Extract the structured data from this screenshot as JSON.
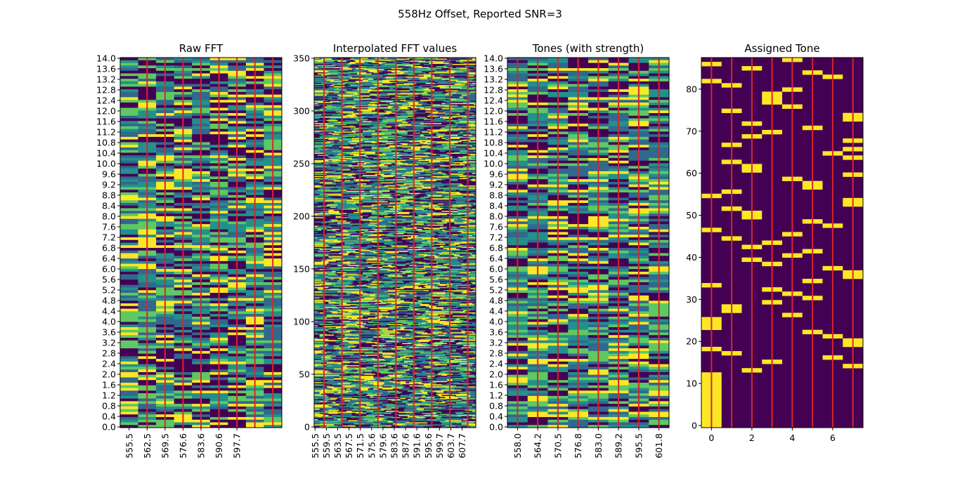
{
  "chart_data": {
    "title": "558Hz Offset, Reported SNR=3",
    "colormap": [
      "#440154",
      "#31688e",
      "#21918c",
      "#5ec962",
      "#fde725"
    ],
    "marker_color": "#d62728",
    "panels": [
      {
        "type": "heatmap",
        "title": "Raw FFT",
        "n_cols": 9,
        "n_rows": 140,
        "y_range": [
          0.0,
          14.0
        ],
        "yticks": [
          "0.0",
          "0.4",
          "0.8",
          "1.2",
          "1.6",
          "2.0",
          "2.4",
          "2.8",
          "3.2",
          "3.6",
          "4.0",
          "4.4",
          "4.8",
          "5.2",
          "5.6",
          "6.0",
          "6.4",
          "6.8",
          "7.2",
          "7.6",
          "8.0",
          "8.4",
          "8.8",
          "9.2",
          "9.6",
          "10.0",
          "10.4",
          "10.8",
          "11.2",
          "11.6",
          "12.0",
          "12.4",
          "12.8",
          "13.2",
          "13.6",
          "14.0"
        ],
        "xticks": [
          "555.5",
          "562.5",
          "569.5",
          "576.6",
          "583.6",
          "590.6",
          "597.7"
        ],
        "marker_cols": [
          1,
          2,
          3,
          4,
          5,
          6,
          7,
          8
        ]
      },
      {
        "type": "heatmap",
        "title": "Interpolated FFT values",
        "n_cols": 90,
        "n_rows": 350,
        "y_range": [
          0,
          350
        ],
        "yticks": [
          "0",
          "50",
          "100",
          "150",
          "200",
          "250",
          "300",
          "350"
        ],
        "xticks": [
          "555.5",
          "559.5",
          "563.5",
          "567.5",
          "571.5",
          "575.6",
          "579.6",
          "583.6",
          "587.6",
          "591.6",
          "595.6",
          "599.7",
          "603.7",
          "607.7"
        ],
        "marker_cols": [
          5,
          15,
          25,
          35,
          45,
          55,
          65,
          75,
          85
        ]
      },
      {
        "type": "heatmap",
        "title": "Tones (with strength)",
        "n_cols": 8,
        "n_rows": 140,
        "y_range": [
          0.0,
          14.0
        ],
        "yticks": [
          "0.0",
          "0.4",
          "0.8",
          "1.2",
          "1.6",
          "2.0",
          "2.4",
          "2.8",
          "3.2",
          "3.6",
          "4.0",
          "4.4",
          "4.8",
          "5.2",
          "5.6",
          "6.0",
          "6.4",
          "6.8",
          "7.2",
          "7.6",
          "8.0",
          "8.4",
          "8.8",
          "9.2",
          "9.6",
          "10.0",
          "10.4",
          "10.8",
          "11.2",
          "11.6",
          "12.0",
          "12.4",
          "12.8",
          "13.2",
          "13.6",
          "14.0"
        ],
        "xticks": [
          "558.0",
          "564.2",
          "570.5",
          "576.8",
          "583.0",
          "589.2",
          "595.5",
          "601.8"
        ],
        "marker_cols": [
          0,
          1,
          2,
          3,
          4,
          5,
          6,
          7
        ]
      },
      {
        "type": "heatmap",
        "title": "Assigned Tone",
        "n_cols": 8,
        "n_rows": 87,
        "x_range": [
          -0.5,
          7.5
        ],
        "y_range": [
          -0.5,
          87.5
        ],
        "yticks": [
          "0",
          "10",
          "20",
          "30",
          "40",
          "50",
          "60",
          "70",
          "80"
        ],
        "xticks": [
          "0",
          "2",
          "4",
          "6"
        ],
        "marker_cols": [
          0,
          1,
          2,
          3,
          4,
          5,
          6,
          7
        ],
        "assigned_tone": [
          0,
          0,
          0,
          0,
          0,
          0,
          0,
          0,
          0,
          0,
          0,
          0,
          0,
          2,
          7,
          3,
          6,
          1,
          0,
          7,
          7,
          6,
          5,
          0,
          0,
          0,
          4,
          1,
          1,
          3,
          5,
          4,
          3,
          0,
          5,
          7,
          7,
          6,
          3,
          2,
          4,
          5,
          2,
          3,
          1,
          4,
          0,
          6,
          5,
          2,
          2,
          1,
          7,
          7,
          0,
          1,
          5,
          5,
          4,
          7,
          2,
          2,
          1,
          7,
          6,
          7,
          1,
          7,
          2,
          3,
          5,
          2,
          7,
          7,
          1,
          4,
          3,
          3,
          3,
          4,
          1,
          0,
          6,
          5,
          2,
          0,
          4
        ]
      }
    ]
  }
}
